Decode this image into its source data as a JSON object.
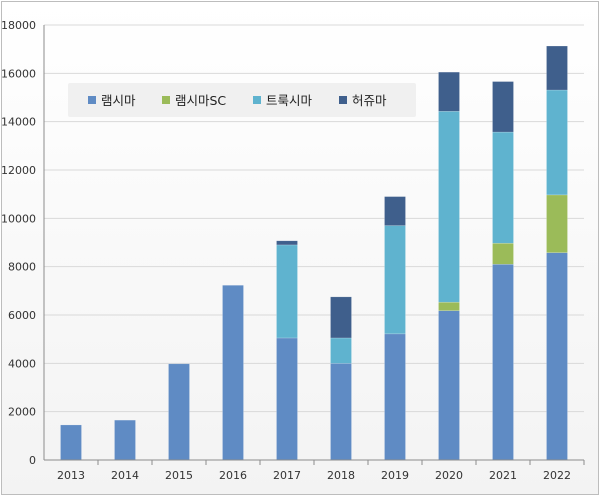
{
  "chart_data": {
    "type": "bar",
    "stacked": true,
    "categories": [
      "2013",
      "2014",
      "2015",
      "2016",
      "2017",
      "2018",
      "2019",
      "2020",
      "2021",
      "2022"
    ],
    "series": [
      {
        "name": "램시마",
        "color": "#5f8bc4",
        "values": [
          1450,
          1650,
          3980,
          7230,
          5050,
          4000,
          5220,
          6180,
          8100,
          8580
        ]
      },
      {
        "name": "램시마SC",
        "color": "#9bbb59",
        "values": [
          0,
          0,
          0,
          0,
          0,
          0,
          0,
          350,
          870,
          2390
        ]
      },
      {
        "name": "트룩시마",
        "color": "#5fb3cf",
        "values": [
          0,
          0,
          0,
          0,
          3850,
          1050,
          4480,
          7900,
          4600,
          4340
        ]
      },
      {
        "name": "허쥬마",
        "color": "#3f5f8c",
        "values": [
          0,
          0,
          0,
          0,
          170,
          1700,
          1200,
          1620,
          2090,
          1820
        ]
      }
    ],
    "ylim": [
      0,
      18000
    ],
    "yticks": [
      "0",
      "2000",
      "4000",
      "6000",
      "8000",
      "10000",
      "12000",
      "14000",
      "16000",
      "18000"
    ],
    "grid": true,
    "legend_position": "top-left",
    "xlabel": "",
    "ylabel": ""
  }
}
